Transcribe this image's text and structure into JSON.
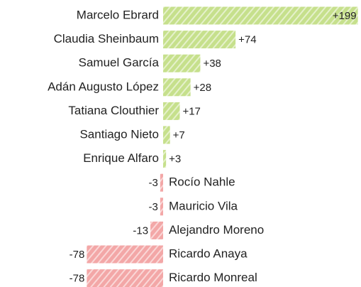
{
  "chart_data": {
    "type": "bar",
    "orientation": "horizontal",
    "categories": [
      "Marcelo Ebrard",
      "Claudia Sheinbaum",
      "Samuel García",
      "Adán Augusto López",
      "Tatiana Clouthier",
      "Santiago Nieto",
      "Enrique Alfaro",
      "Rocío Nahle",
      "Mauricio Vila",
      "Alejandro Moreno",
      "Ricardo Anaya",
      "Ricardo Monreal"
    ],
    "values": [
      199,
      74,
      38,
      28,
      17,
      7,
      3,
      -3,
      -3,
      -13,
      -78,
      -78
    ],
    "value_labels": [
      "+199",
      "+74",
      "+38",
      "+28",
      "+17",
      "+7",
      "+3",
      "-3",
      "-3",
      "-13",
      "-78",
      "-78"
    ],
    "color_positive": "#c6e08c",
    "color_negative": "#f3a7a7"
  }
}
